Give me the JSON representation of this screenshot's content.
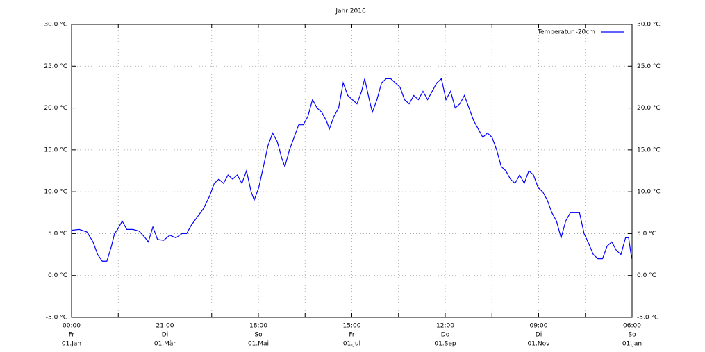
{
  "chart_data": {
    "type": "line",
    "title": "Jahr 2016",
    "x": [
      0,
      5,
      10,
      14,
      17,
      20,
      23,
      26,
      28,
      30,
      33,
      36,
      40,
      44,
      48,
      50,
      53,
      56,
      60,
      64,
      68,
      72,
      75,
      78,
      82,
      86,
      90,
      93,
      96,
      99,
      102,
      105,
      108,
      111,
      114,
      117,
      119,
      122,
      125,
      128,
      131,
      134,
      137,
      139,
      142,
      145,
      148,
      151,
      154,
      157,
      160,
      163,
      166,
      168,
      171,
      174,
      177,
      180,
      183,
      186,
      189,
      191,
      194,
      196,
      199,
      202,
      205,
      208,
      211,
      214,
      217,
      220,
      223,
      226,
      229,
      232,
      235,
      238,
      241,
      244,
      247,
      250,
      253,
      256,
      259,
      262,
      265,
      268,
      271,
      274,
      277,
      280,
      283,
      286,
      289,
      292,
      295,
      298,
      301,
      304,
      307,
      310,
      313,
      316,
      319,
      322,
      325,
      328,
      331,
      334,
      337,
      340,
      343,
      346,
      349,
      352,
      355,
      358,
      361,
      363,
      365
    ],
    "series": [
      {
        "name": "Temperatur -20cm",
        "color": "#0000ff",
        "values": [
          5.4,
          5.5,
          5.2,
          4.0,
          2.5,
          1.7,
          1.7,
          3.5,
          5.0,
          5.5,
          6.5,
          5.5,
          5.5,
          5.3,
          4.5,
          4.0,
          5.8,
          4.3,
          4.2,
          4.8,
          4.5,
          5.0,
          5.0,
          6.0,
          7.0,
          8.0,
          9.5,
          11.0,
          11.5,
          11.0,
          12.0,
          11.5,
          12.0,
          11.0,
          12.5,
          10.0,
          9.0,
          10.5,
          13.0,
          15.5,
          17.0,
          16.0,
          14.0,
          13.0,
          15.0,
          16.5,
          18.0,
          18.0,
          19.0,
          21.0,
          20.0,
          19.5,
          18.5,
          17.5,
          19.0,
          20.0,
          23.0,
          21.5,
          21.0,
          20.5,
          22.0,
          23.5,
          21.0,
          19.5,
          21.0,
          23.0,
          23.5,
          23.5,
          23.0,
          22.5,
          21.0,
          20.5,
          21.5,
          21.0,
          22.0,
          21.0,
          22.0,
          23.0,
          23.5,
          21.0,
          22.0,
          20.0,
          20.5,
          21.5,
          20.0,
          18.5,
          17.5,
          16.5,
          17.0,
          16.5,
          15.0,
          13.0,
          12.5,
          11.5,
          11.0,
          12.0,
          11.0,
          12.5,
          12.0,
          10.5,
          10.0,
          9.0,
          7.5,
          6.5,
          4.5,
          6.5,
          7.5,
          7.5,
          7.5,
          5.0,
          3.8,
          2.5,
          2.0,
          2.0,
          3.5,
          4.0,
          3.0,
          2.5,
          4.5,
          4.5,
          2.0
        ]
      }
    ],
    "xlim": [
      0,
      365.25
    ],
    "xticks": [
      {
        "value": 0,
        "label": [
          "00:00",
          "Fr",
          "01.Jan"
        ]
      },
      {
        "value": 30.4375,
        "label": null
      },
      {
        "value": 60.875,
        "label": [
          "21:00",
          "Di",
          "01.Mär"
        ]
      },
      {
        "value": 91.3125,
        "label": null
      },
      {
        "value": 121.75,
        "label": [
          "18:00",
          "So",
          "01.Mai"
        ]
      },
      {
        "value": 152.1875,
        "label": null
      },
      {
        "value": 182.625,
        "label": [
          "15:00",
          "Fr",
          "01.Jul"
        ]
      },
      {
        "value": 213.0625,
        "label": null
      },
      {
        "value": 243.5,
        "label": [
          "12:00",
          "Do",
          "01.Sep"
        ]
      },
      {
        "value": 273.9375,
        "label": null
      },
      {
        "value": 304.375,
        "label": [
          "09:00",
          "Di",
          "01.Nov"
        ]
      },
      {
        "value": 334.8125,
        "label": null
      },
      {
        "value": 365.25,
        "label": [
          "06:00",
          "So",
          "01.Jan"
        ]
      }
    ],
    "ylim": [
      -5,
      30
    ],
    "yticks": [
      {
        "value": -5,
        "label": "-5.0 °C"
      },
      {
        "value": 0,
        "label": "0.0 °C"
      },
      {
        "value": 5,
        "label": "5.0 °C"
      },
      {
        "value": 10,
        "label": "10.0 °C"
      },
      {
        "value": 15,
        "label": "15.0 °C"
      },
      {
        "value": 20,
        "label": "20.0 °C"
      },
      {
        "value": 25,
        "label": "25.0 °C"
      },
      {
        "value": 30,
        "label": "30.0 °C"
      }
    ],
    "y2lim": [
      -5,
      30
    ],
    "y2ticks": [
      {
        "value": -5,
        "label": "-5.0 °C"
      },
      {
        "value": 0,
        "label": "0.0 °C"
      },
      {
        "value": 5,
        "label": "5.0 °C"
      },
      {
        "value": 10,
        "label": "10.0 °C"
      },
      {
        "value": 15,
        "label": "15.0 °C"
      },
      {
        "value": 20,
        "label": "20.0 °C"
      },
      {
        "value": 25,
        "label": "25.0 °C"
      },
      {
        "value": 30,
        "label": "30.0 °C"
      }
    ],
    "grid": true,
    "legend": "top-right"
  }
}
